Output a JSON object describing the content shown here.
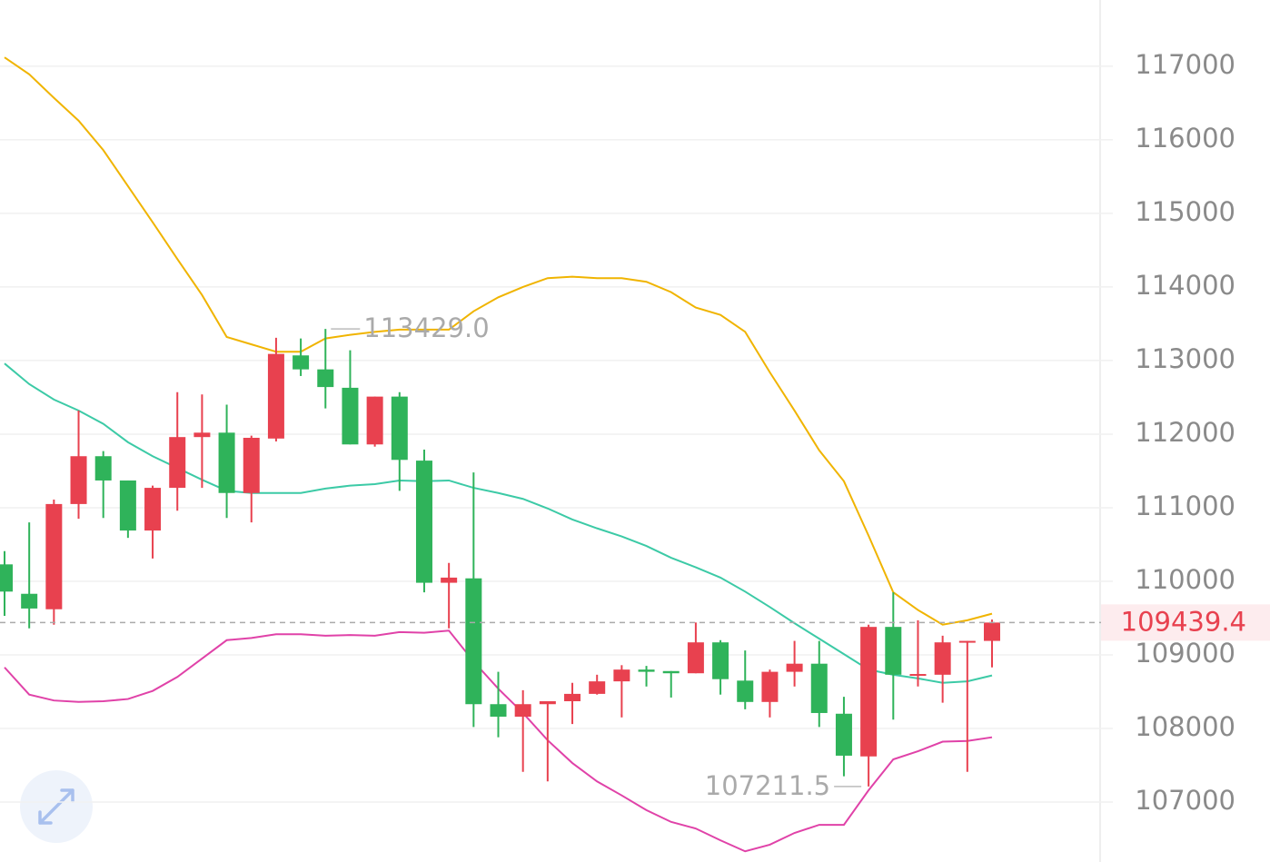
{
  "chart_data": {
    "type": "candlestick",
    "open": [
      110230,
      109830,
      109620,
      111050,
      111700,
      111370,
      110690,
      111270,
      111960,
      112020,
      111200,
      111940,
      113070,
      112880,
      112630,
      111860,
      112510,
      111640,
      109980,
      110040,
      108330,
      108160,
      108330,
      108370,
      108470,
      108640,
      108800,
      108780,
      108750,
      109170,
      108650,
      108360,
      108770,
      108880,
      108200,
      107620,
      109380,
      108720,
      108730,
      109180,
      109190
    ],
    "high": [
      110410,
      110800,
      111110,
      112320,
      111770,
      111370,
      111300,
      112570,
      112540,
      112400,
      111980,
      113310,
      113300,
      113429,
      113140,
      112510,
      112570,
      111790,
      110250,
      111480,
      108770,
      108520,
      108370,
      108620,
      108730,
      108860,
      108850,
      108780,
      109440,
      109200,
      109060,
      108800,
      109190,
      109190,
      108430,
      109410,
      109850,
      109470,
      109260,
      109190,
      109480
    ],
    "low": [
      109530,
      109360,
      109410,
      110850,
      110860,
      110590,
      110310,
      110960,
      111270,
      110860,
      110800,
      111900,
      112790,
      112350,
      111860,
      111830,
      111230,
      109850,
      109360,
      108020,
      107880,
      107410,
      107280,
      108060,
      108460,
      108150,
      108570,
      108420,
      108750,
      108460,
      108260,
      108150,
      108570,
      108020,
      107350,
      107211.5,
      108120,
      108570,
      108350,
      107410,
      108830
    ],
    "close": [
      109860,
      109630,
      111050,
      111700,
      111370,
      110690,
      111270,
      111960,
      112020,
      111200,
      111950,
      113090,
      112880,
      112640,
      111860,
      112510,
      111650,
      109980,
      110050,
      108330,
      108160,
      108330,
      108370,
      108470,
      108640,
      108800,
      108770,
      108750,
      109170,
      108670,
      108360,
      108770,
      108880,
      108210,
      107630,
      109380,
      108730,
      108740,
      109170,
      109190,
      109439.4
    ],
    "up_color": "#e8414f",
    "down_color": "#2fb35a",
    "upper": {
      "color": "#f0b400",
      "values": [
        117120,
        116890,
        116570,
        116260,
        115860,
        115370,
        114880,
        114380,
        113890,
        113320,
        113220,
        113120,
        113120,
        113300,
        113350,
        113390,
        113420,
        113420,
        113420,
        113670,
        113860,
        114000,
        114120,
        114140,
        114120,
        114120,
        114070,
        113930,
        113720,
        113620,
        113390,
        112840,
        112320,
        111780,
        111360,
        110620,
        109850,
        109610,
        109410,
        109470,
        109560
      ]
    },
    "middle": {
      "color": "#3ccaa6",
      "values": [
        112960,
        112680,
        112470,
        112320,
        112140,
        111890,
        111700,
        111540,
        111380,
        111230,
        111200,
        111200,
        111200,
        111260,
        111300,
        111320,
        111370,
        111360,
        111370,
        111270,
        111200,
        111120,
        110990,
        110840,
        110720,
        110610,
        110480,
        110320,
        110190,
        110050,
        109860,
        109650,
        109430,
        109220,
        109010,
        108800,
        108730,
        108680,
        108620,
        108640,
        108720
      ]
    },
    "lower": {
      "color": "#e042a8",
      "values": [
        108830,
        108460,
        108380,
        108360,
        108370,
        108400,
        108510,
        108700,
        108950,
        109200,
        109230,
        109280,
        109280,
        109260,
        109270,
        109260,
        109310,
        109300,
        109330,
        108910,
        108540,
        108210,
        107840,
        107530,
        107280,
        107090,
        106890,
        106730,
        106640,
        106480,
        106330,
        106420,
        106580,
        106690,
        106690,
        107160,
        107580,
        107690,
        107820,
        107830,
        107880
      ]
    },
    "ylim": [
      106185,
      117900
    ],
    "yticks": [
      107000,
      108000,
      109000,
      110000,
      111000,
      112000,
      113000,
      114000,
      115000,
      116000,
      117000
    ],
    "grid": true,
    "high_label": {
      "value": 113429,
      "label": "113429.0"
    },
    "low_label": 107211.5,
    "last_price": 109439.4
  }
}
